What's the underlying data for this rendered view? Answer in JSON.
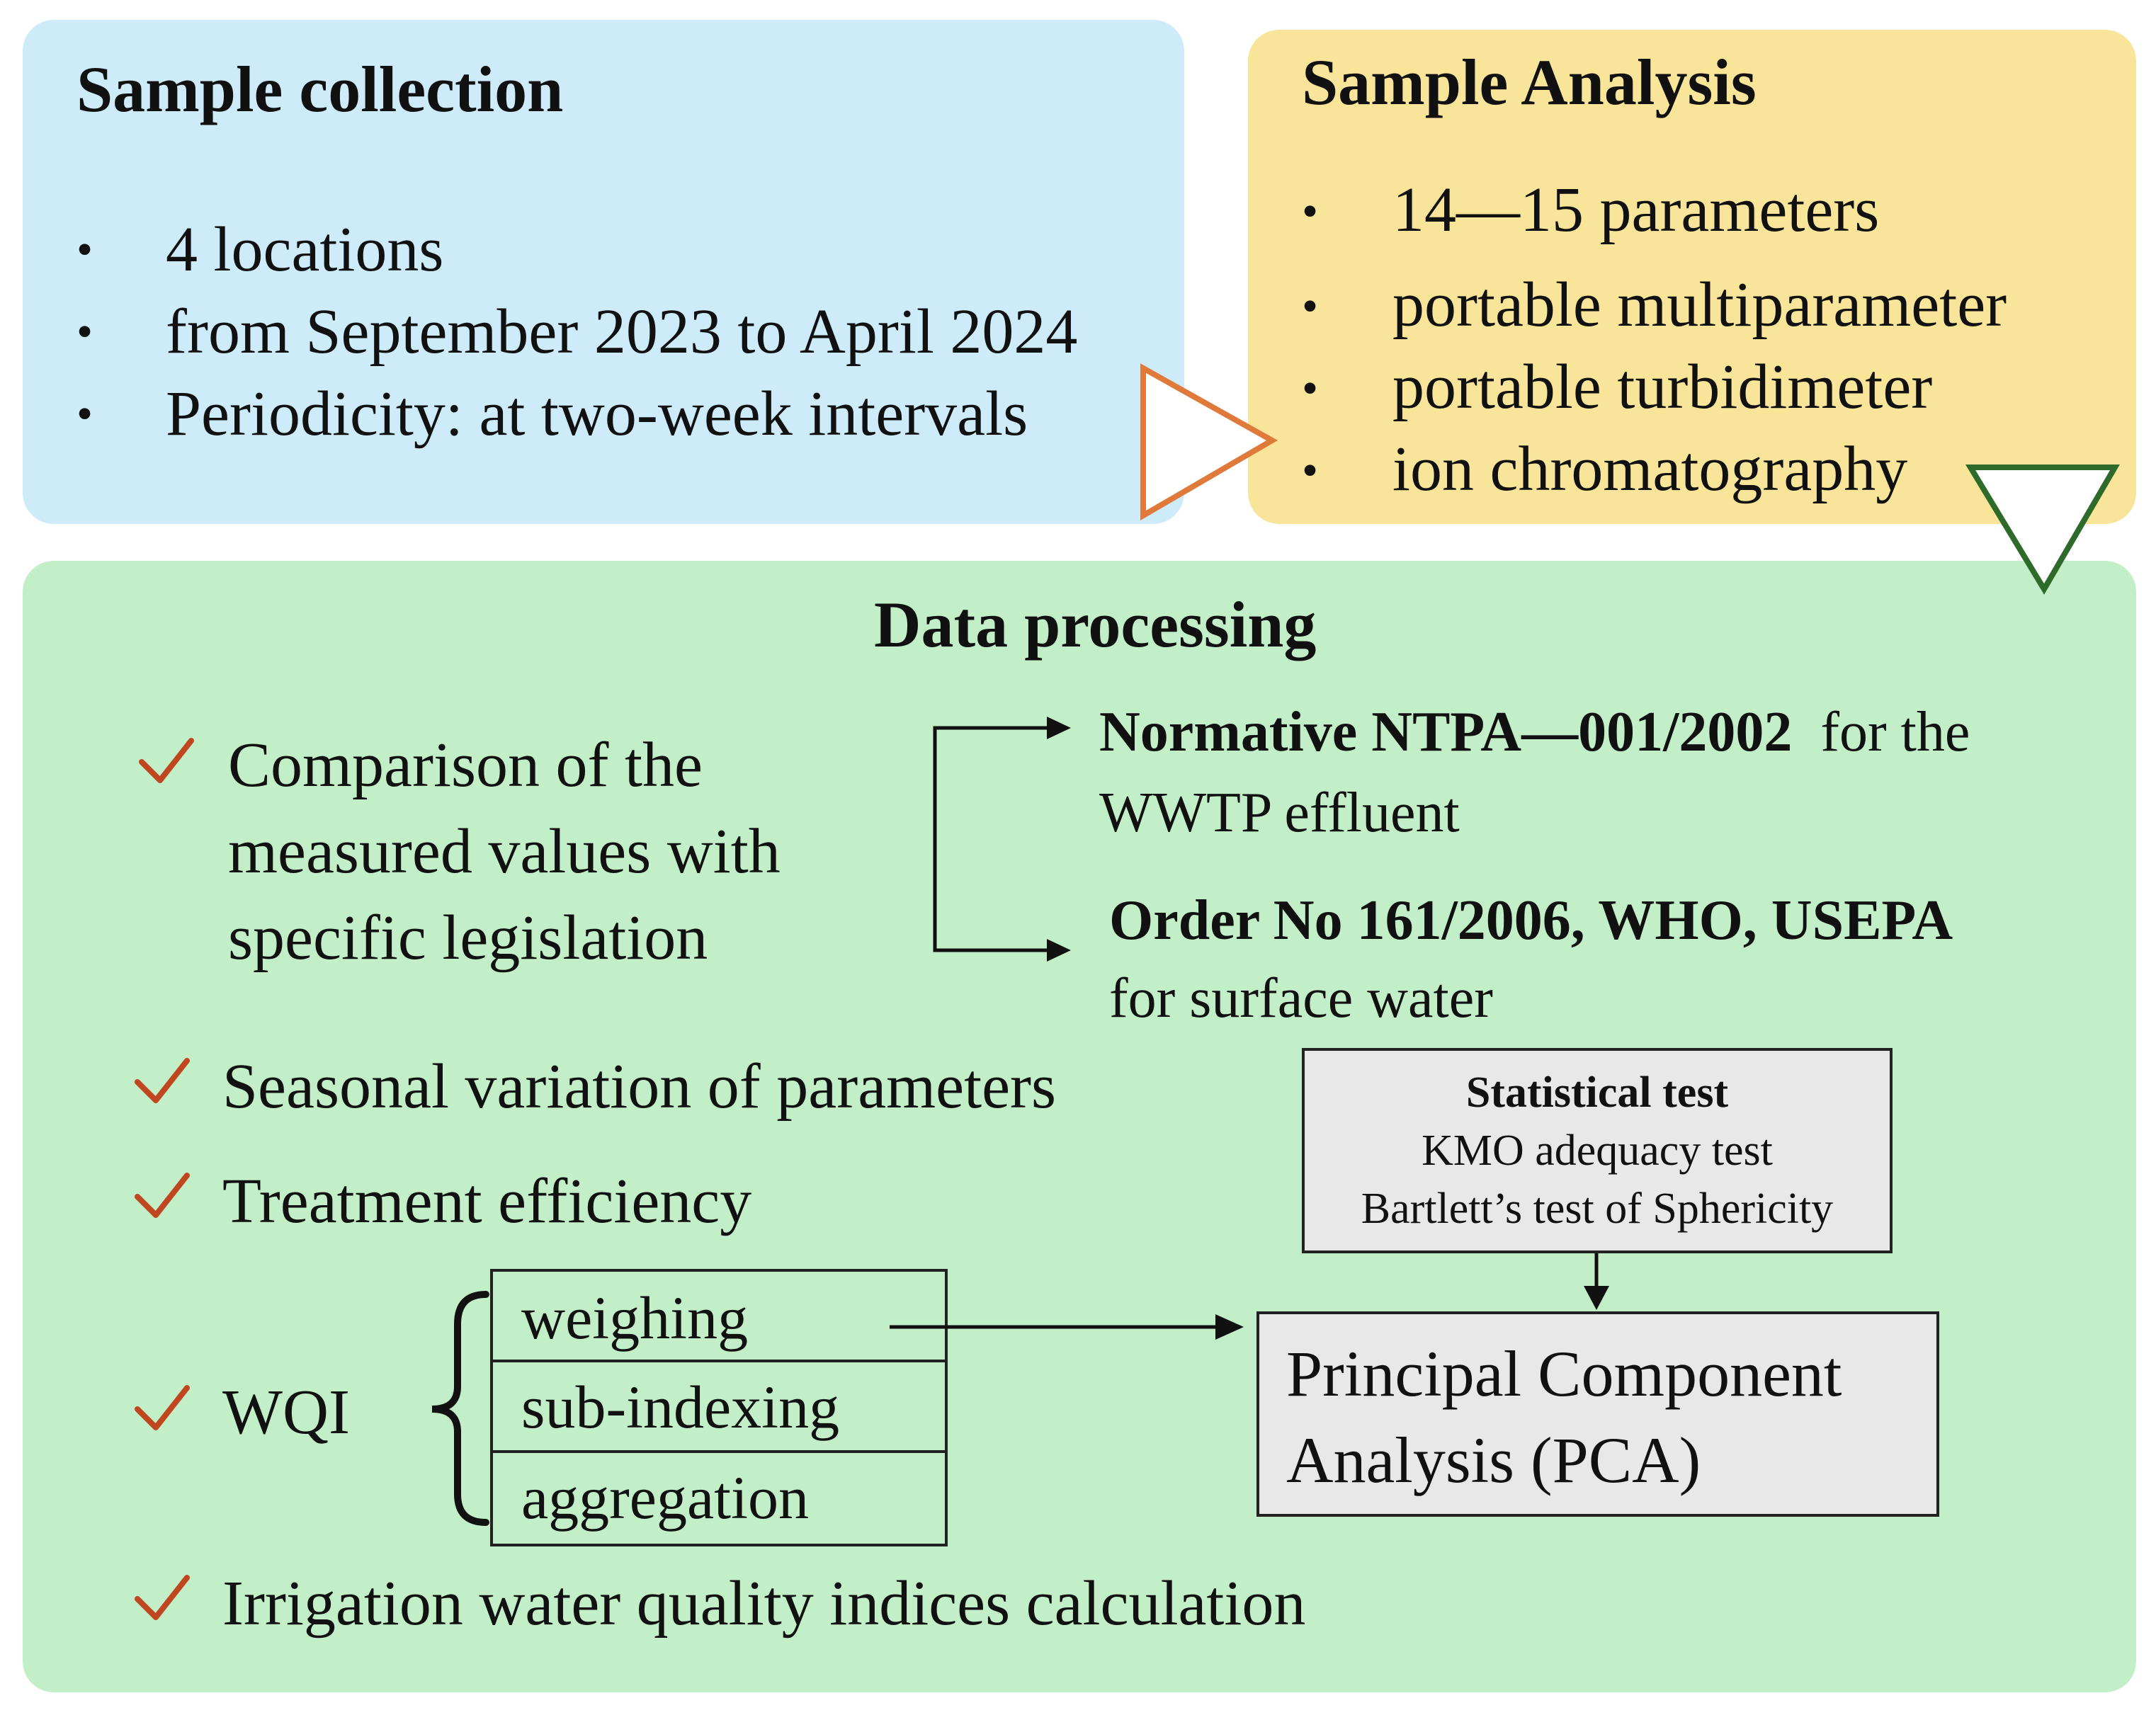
{
  "collection": {
    "title": "Sample collection",
    "items": [
      "4 locations",
      "from September 2023 to April 2024",
      "Periodicity: at two-week intervals"
    ]
  },
  "analysis": {
    "title": "Sample Analysis",
    "items": [
      "14—15 parameters",
      "portable multiparameter",
      "portable turbidimeter",
      "ion chromatography"
    ]
  },
  "processing": {
    "title": "Data processing",
    "comparison": [
      "Comparison of the",
      "measured values with",
      "specific legislation"
    ],
    "norm1_bold": "Normative NTPA—001/2002",
    "norm1_rest": "for the",
    "norm1_line2": "WWTP effluent",
    "norm2_bold": "Order No 161/2006, WHO, USEPA",
    "norm2_line2": "for surface water",
    "seasonal": "Seasonal variation of parameters",
    "treatment": "Treatment efficiency",
    "wqi": "WQI",
    "wqi_steps": [
      "weighing",
      "sub-indexing",
      "aggregation"
    ],
    "irrigation": "Irrigation water quality indices calculation",
    "stat_title": "Statistical test",
    "stat_lines": [
      "KMO adequacy test",
      "Bartlett’s test of Sphericity"
    ],
    "pca": [
      "Principal Component",
      "Analysis (PCA)"
    ]
  },
  "colors": {
    "collection_bg": "#cdebf9",
    "analysis_bg": "#f8e59a",
    "processing_bg": "#c3efc8",
    "orange_arrow": "#e07a3a",
    "green_arrow": "#2e6b2a",
    "check": "#c0461f"
  }
}
